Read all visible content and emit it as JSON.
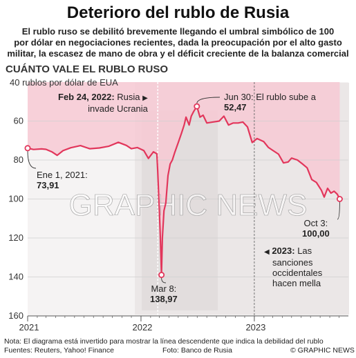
{
  "header": {
    "title": "Deterioro del rublo de Rusia",
    "subtitle_lines": [
      "El rublo ruso se debilitó brevemente llegando el umbral simbólico de 100",
      "por dólar en negociaciones recientes, dada la preocupación por el alto gasto",
      "militar, la escasez de mano de obra y el déficit creciente de la balanza comercial"
    ],
    "section": "CUÁNTO VALE EL RUBLO RUSO",
    "unit": "40 rublos por dólar de EUA"
  },
  "chart_data": {
    "type": "line",
    "ylabel": "rublos por dólar de EUA",
    "ylim": [
      40,
      160
    ],
    "y_inverted": true,
    "yticks": [
      "60",
      "80",
      "100",
      "120",
      "140",
      "160"
    ],
    "xticks": [
      "2021",
      "2022",
      "2023"
    ],
    "x_range": [
      "2021-01-01",
      "2023-10-31"
    ],
    "series": [
      {
        "color": "#e2365b",
        "points": [
          [
            "2021-01-01",
            73.91
          ],
          [
            "2021-01-20",
            74.6
          ],
          [
            "2021-02-15",
            74.3
          ],
          [
            "2021-03-01",
            74.5
          ],
          [
            "2021-03-20",
            75.8
          ],
          [
            "2021-04-06",
            77.6
          ],
          [
            "2021-04-25",
            75.2
          ],
          [
            "2021-05-20",
            73.7
          ],
          [
            "2021-06-20",
            72.6
          ],
          [
            "2021-07-20",
            74.2
          ],
          [
            "2021-08-20",
            73.8
          ],
          [
            "2021-09-20",
            72.9
          ],
          [
            "2021-10-20",
            70.9
          ],
          [
            "2021-11-15",
            72.5
          ],
          [
            "2021-12-01",
            74.2
          ],
          [
            "2021-12-20",
            73.6
          ],
          [
            "2022-01-10",
            75.1
          ],
          [
            "2022-01-25",
            79.2
          ],
          [
            "2022-02-10",
            75.8
          ],
          [
            "2022-02-21",
            76.8
          ],
          [
            "2022-02-24",
            86.0
          ],
          [
            "2022-03-01",
            106.0
          ],
          [
            "2022-03-04",
            118.0
          ],
          [
            "2022-03-08",
            138.97
          ],
          [
            "2022-03-11",
            120.0
          ],
          [
            "2022-03-16",
            106.0
          ],
          [
            "2022-03-22",
            102.0
          ],
          [
            "2022-03-29",
            88.0
          ],
          [
            "2022-04-05",
            82.0
          ],
          [
            "2022-04-12",
            80.0
          ],
          [
            "2022-04-20",
            76.0
          ],
          [
            "2022-05-01",
            71.0
          ],
          [
            "2022-05-12",
            66.0
          ],
          [
            "2022-05-20",
            62.0
          ],
          [
            "2022-05-26",
            58.0
          ],
          [
            "2022-06-05",
            62.0
          ],
          [
            "2022-06-12",
            57.5
          ],
          [
            "2022-06-20",
            55.0
          ],
          [
            "2022-06-30",
            52.47
          ],
          [
            "2022-07-10",
            58.0
          ],
          [
            "2022-07-20",
            57.0
          ],
          [
            "2022-08-01",
            61.0
          ],
          [
            "2022-08-20",
            60.5
          ],
          [
            "2022-09-10",
            60.0
          ],
          [
            "2022-09-25",
            57.5
          ],
          [
            "2022-10-10",
            62.0
          ],
          [
            "2022-10-25",
            61.0
          ],
          [
            "2022-11-10",
            61.0
          ],
          [
            "2022-11-25",
            60.5
          ],
          [
            "2022-12-10",
            63.0
          ],
          [
            "2022-12-25",
            71.0
          ],
          [
            "2023-01-10",
            69.0
          ],
          [
            "2023-01-31",
            70.5
          ],
          [
            "2023-02-15",
            73.5
          ],
          [
            "2023-03-01",
            75.0
          ],
          [
            "2023-03-20",
            77.0
          ],
          [
            "2023-04-05",
            81.5
          ],
          [
            "2023-04-20",
            81.0
          ],
          [
            "2023-05-01",
            79.0
          ],
          [
            "2023-05-20",
            80.0
          ],
          [
            "2023-06-05",
            82.0
          ],
          [
            "2023-06-20",
            84.0
          ],
          [
            "2023-07-05",
            90.0
          ],
          [
            "2023-07-20",
            91.5
          ],
          [
            "2023-08-05",
            95.5
          ],
          [
            "2023-08-14",
            99.0
          ],
          [
            "2023-08-25",
            94.5
          ],
          [
            "2023-09-05",
            97.0
          ],
          [
            "2023-09-15",
            96.0
          ],
          [
            "2023-09-25",
            97.5
          ],
          [
            "2023-10-03",
            100.0
          ]
        ]
      }
    ],
    "annotations": [
      {
        "date": "2021-01-01",
        "value": 73.91,
        "text": "Ene 1, 2021:",
        "value_text": "73,91"
      },
      {
        "date": "2022-03-08",
        "value": 138.97,
        "text": "Mar 8:",
        "value_text": "138,97"
      },
      {
        "date": "2022-06-30",
        "value": 52.47,
        "text": "Jun 30: El rublo sube a",
        "value_text": "52,47"
      },
      {
        "date": "2023-10-03",
        "value": 100.0,
        "text": "Oct 3:",
        "value_text": "100,00"
      }
    ],
    "events": [
      {
        "date": "2022-02-24",
        "bold": "Feb 24, 2022:",
        "lines": [
          "Rusia",
          "invade Ucrania"
        ]
      },
      {
        "date": "2023-01-01",
        "bold": "2023:",
        "lines": [
          "Las",
          "sanciones",
          "occidentales",
          "hacen mella"
        ]
      }
    ],
    "colors": {
      "line": "#e2365b",
      "fill": "#f7c9d3",
      "axis": "#555555"
    }
  },
  "footer": {
    "note": "Nota: El diagrama está invertido para mostrar la línea descendente que indica la debilidad del rublo",
    "sources": "Fuentes: Reuters, Yahoo! Finance",
    "photo": "Foto: Banco de Rusia",
    "copyright": "© GRAPHIC NEWS"
  },
  "watermark": "GRAPHIC NEWS"
}
